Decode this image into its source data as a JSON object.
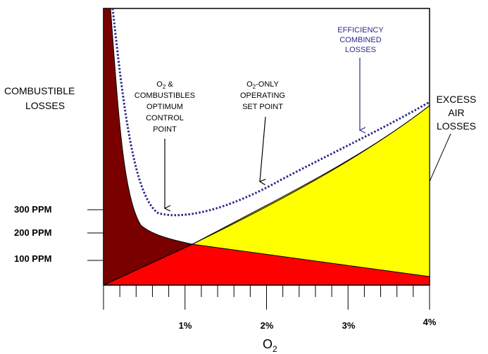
{
  "chart_data": {
    "type": "area",
    "xlabel": "O",
    "xlabel_subscript": "2",
    "x_ticks": [
      "1%",
      "2%",
      "3%",
      "4%"
    ],
    "y_ticks": [
      "100 PPM",
      "200 PPM",
      "300 PPM"
    ],
    "ylabel_lines": [
      "COMBUSTIBLE",
      "LOSSES"
    ],
    "right_label_lines": [
      "EXCESS",
      "AIR",
      "LOSSES"
    ],
    "x_range": [
      0,
      4
    ],
    "series": [
      {
        "name": "COMBUSTIBLE LOSSES",
        "color": "#7a0000"
      },
      {
        "name": "EXCESS AIR LOSSES",
        "color": "#ffff00"
      },
      {
        "name": "EFFICIENCY COMBINED LOSSES",
        "color": "#2b2b8c",
        "style": "dotted"
      }
    ],
    "annotations": {
      "efficiency": [
        "EFFICIENCY",
        "COMBINED",
        "LOSSES"
      ],
      "optimum": {
        "line1_pre": "O",
        "line1_sub": "2",
        "line1_post": " &",
        "lines": [
          "COMBUSTIBLES",
          "OPTIMUM",
          "CONTROL",
          "POINT"
        ]
      },
      "o2only": {
        "line1_pre": "O",
        "line1_sub": "2",
        "line1_post": "-ONLY",
        "lines": [
          "OPERATING",
          "SET POINT"
        ]
      }
    },
    "colors": {
      "combustible": "#7a0000",
      "red_region": "#ff0000",
      "excess_air": "#ffff00",
      "efficiency_curve": "#2b2b8c"
    }
  }
}
